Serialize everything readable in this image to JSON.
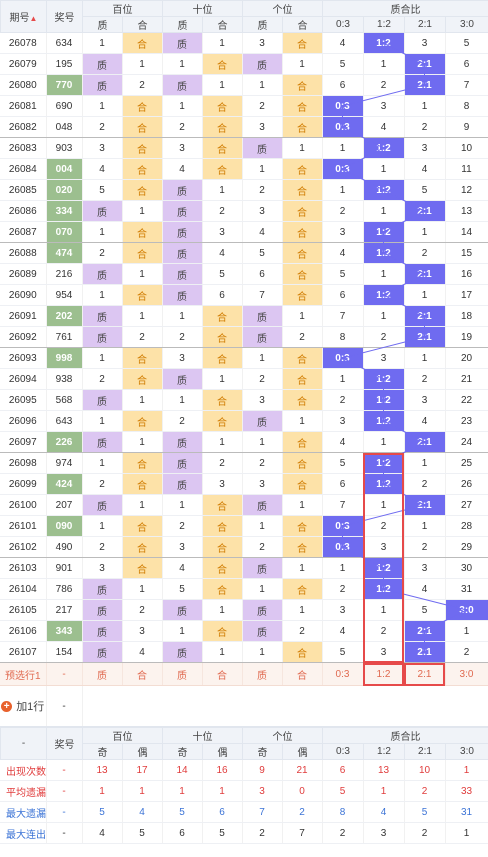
{
  "header": {
    "issue": "期号",
    "sort_arrow": "▲",
    "award": "奖号",
    "groups": [
      "百位",
      "十位",
      "个位",
      "质合比"
    ],
    "sub": [
      "质",
      "合",
      "质",
      "合",
      "质",
      "合",
      "0:3",
      "1:2",
      "2:1",
      "3:0"
    ]
  },
  "rows": [
    {
      "issue": "26078",
      "num": "634",
      "h": false,
      "c": [
        "1",
        "合",
        "质",
        "1",
        "3",
        "合",
        "4",
        "1:2",
        "3",
        "5"
      ]
    },
    {
      "issue": "26079",
      "num": "195",
      "h": false,
      "c": [
        "质",
        "1",
        "1",
        "合",
        "质",
        "1",
        "5",
        "1",
        "2:1",
        "6"
      ]
    },
    {
      "issue": "26080",
      "num": "770",
      "h": true,
      "c": [
        "质",
        "2",
        "质",
        "1",
        "1",
        "合",
        "6",
        "2",
        "2:1",
        "7"
      ]
    },
    {
      "issue": "26081",
      "num": "690",
      "h": false,
      "c": [
        "1",
        "合",
        "1",
        "合",
        "2",
        "合",
        "0:3",
        "3",
        "1",
        "8"
      ]
    },
    {
      "issue": "26082",
      "num": "048",
      "h": false,
      "c": [
        "2",
        "合",
        "2",
        "合",
        "3",
        "合",
        "0:3",
        "4",
        "2",
        "9"
      ]
    },
    {
      "issue": "26083",
      "num": "903",
      "h": false,
      "c": [
        "3",
        "合",
        "3",
        "合",
        "质",
        "1",
        "1",
        "1:2",
        "3",
        "10"
      ]
    },
    {
      "issue": "26084",
      "num": "004",
      "h": true,
      "c": [
        "4",
        "合",
        "4",
        "合",
        "1",
        "合",
        "0:3",
        "1",
        "4",
        "11"
      ]
    },
    {
      "issue": "26085",
      "num": "020",
      "h": true,
      "c": [
        "5",
        "合",
        "质",
        "1",
        "2",
        "合",
        "1",
        "1:2",
        "5",
        "12"
      ]
    },
    {
      "issue": "26086",
      "num": "334",
      "h": true,
      "c": [
        "质",
        "1",
        "质",
        "2",
        "3",
        "合",
        "2",
        "1",
        "2:1",
        "13"
      ]
    },
    {
      "issue": "26087",
      "num": "070",
      "h": true,
      "c": [
        "1",
        "合",
        "质",
        "3",
        "4",
        "合",
        "3",
        "1:2",
        "1",
        "14"
      ]
    },
    {
      "issue": "26088",
      "num": "474",
      "h": true,
      "c": [
        "2",
        "合",
        "质",
        "4",
        "5",
        "合",
        "4",
        "1:2",
        "2",
        "15"
      ]
    },
    {
      "issue": "26089",
      "num": "216",
      "h": false,
      "c": [
        "质",
        "1",
        "质",
        "5",
        "6",
        "合",
        "5",
        "1",
        "2:1",
        "16"
      ]
    },
    {
      "issue": "26090",
      "num": "954",
      "h": false,
      "c": [
        "1",
        "合",
        "质",
        "6",
        "7",
        "合",
        "6",
        "1:2",
        "1",
        "17"
      ]
    },
    {
      "issue": "26091",
      "num": "202",
      "h": true,
      "c": [
        "质",
        "1",
        "1",
        "合",
        "质",
        "1",
        "7",
        "1",
        "2:1",
        "18"
      ]
    },
    {
      "issue": "26092",
      "num": "761",
      "h": false,
      "c": [
        "质",
        "2",
        "2",
        "合",
        "质",
        "2",
        "8",
        "2",
        "2:1",
        "19"
      ]
    },
    {
      "issue": "26093",
      "num": "998",
      "h": true,
      "c": [
        "1",
        "合",
        "3",
        "合",
        "1",
        "合",
        "0:3",
        "3",
        "1",
        "20"
      ]
    },
    {
      "issue": "26094",
      "num": "938",
      "h": false,
      "c": [
        "2",
        "合",
        "质",
        "1",
        "2",
        "合",
        "1",
        "1:2",
        "2",
        "21"
      ]
    },
    {
      "issue": "26095",
      "num": "568",
      "h": false,
      "c": [
        "质",
        "1",
        "1",
        "合",
        "3",
        "合",
        "2",
        "1:2",
        "3",
        "22"
      ]
    },
    {
      "issue": "26096",
      "num": "643",
      "h": false,
      "c": [
        "1",
        "合",
        "2",
        "合",
        "质",
        "1",
        "3",
        "1:2",
        "4",
        "23"
      ]
    },
    {
      "issue": "26097",
      "num": "226",
      "h": true,
      "c": [
        "质",
        "1",
        "质",
        "1",
        "1",
        "合",
        "4",
        "1",
        "2:1",
        "24"
      ]
    },
    {
      "issue": "26098",
      "num": "974",
      "h": false,
      "c": [
        "1",
        "合",
        "质",
        "2",
        "2",
        "合",
        "5",
        "1:2",
        "1",
        "25"
      ]
    },
    {
      "issue": "26099",
      "num": "424",
      "h": true,
      "c": [
        "2",
        "合",
        "质",
        "3",
        "3",
        "合",
        "6",
        "1:2",
        "2",
        "26"
      ]
    },
    {
      "issue": "26100",
      "num": "207",
      "h": false,
      "c": [
        "质",
        "1",
        "1",
        "合",
        "质",
        "1",
        "7",
        "1",
        "2:1",
        "27"
      ]
    },
    {
      "issue": "26101",
      "num": "090",
      "h": true,
      "c": [
        "1",
        "合",
        "2",
        "合",
        "1",
        "合",
        "0:3",
        "2",
        "1",
        "28"
      ]
    },
    {
      "issue": "26102",
      "num": "490",
      "h": false,
      "c": [
        "2",
        "合",
        "3",
        "合",
        "2",
        "合",
        "0:3",
        "3",
        "2",
        "29"
      ]
    },
    {
      "issue": "26103",
      "num": "901",
      "h": false,
      "c": [
        "3",
        "合",
        "4",
        "合",
        "质",
        "1",
        "1",
        "1:2",
        "3",
        "30"
      ]
    },
    {
      "issue": "26104",
      "num": "786",
      "h": false,
      "c": [
        "质",
        "1",
        "5",
        "合",
        "1",
        "合",
        "2",
        "1:2",
        "4",
        "31"
      ]
    },
    {
      "issue": "26105",
      "num": "217",
      "h": false,
      "c": [
        "质",
        "2",
        "质",
        "1",
        "质",
        "1",
        "3",
        "1",
        "5",
        "3:0"
      ]
    },
    {
      "issue": "26106",
      "num": "343",
      "h": true,
      "c": [
        "质",
        "3",
        "1",
        "合",
        "质",
        "2",
        "4",
        "2",
        "2:1",
        "1"
      ]
    },
    {
      "issue": "26107",
      "num": "154",
      "h": false,
      "c": [
        "质",
        "4",
        "质",
        "1",
        "1",
        "合",
        "5",
        "3",
        "2:1",
        "2"
      ]
    }
  ],
  "predict": {
    "label": "预选行1",
    "num": "-",
    "cells": [
      "质",
      "合",
      "质",
      "合",
      "质",
      "合",
      "0:3",
      "1:2",
      "2:1",
      "3:0"
    ]
  },
  "add_row": {
    "label": "加1行",
    "dash": "-"
  },
  "stats_header": {
    "dash": "-",
    "award": "奖号",
    "groups": [
      "百位",
      "十位",
      "个位",
      "质合比"
    ],
    "sub": [
      "奇",
      "偶",
      "奇",
      "偶",
      "奇",
      "偶",
      "0:3",
      "1:2",
      "2:1",
      "3:0"
    ]
  },
  "stats": [
    {
      "label": "出现次数",
      "num": "-",
      "vals": [
        "13",
        "17",
        "14",
        "16",
        "9",
        "21",
        "6",
        "13",
        "10",
        "1"
      ]
    },
    {
      "label": "平均遗漏",
      "num": "-",
      "vals": [
        "1",
        "1",
        "1",
        "1",
        "3",
        "0",
        "5",
        "1",
        "2",
        "33"
      ]
    },
    {
      "label": "最大遗漏",
      "num": "-",
      "vals": [
        "5",
        "4",
        "5",
        "6",
        "7",
        "2",
        "8",
        "4",
        "5",
        "31"
      ]
    },
    {
      "label": "最大连出",
      "num": "-",
      "vals": [
        "4",
        "5",
        "6",
        "5",
        "2",
        "7",
        "2",
        "3",
        "2",
        "1"
      ]
    }
  ],
  "colors": {
    "prime_bg": "#dcc6f2",
    "composite_bg": "#fde2a8",
    "hit_bg": "#6f6bf0",
    "highlight_num_bg": "#9cbf8f",
    "box_red": "#e64a4a"
  }
}
